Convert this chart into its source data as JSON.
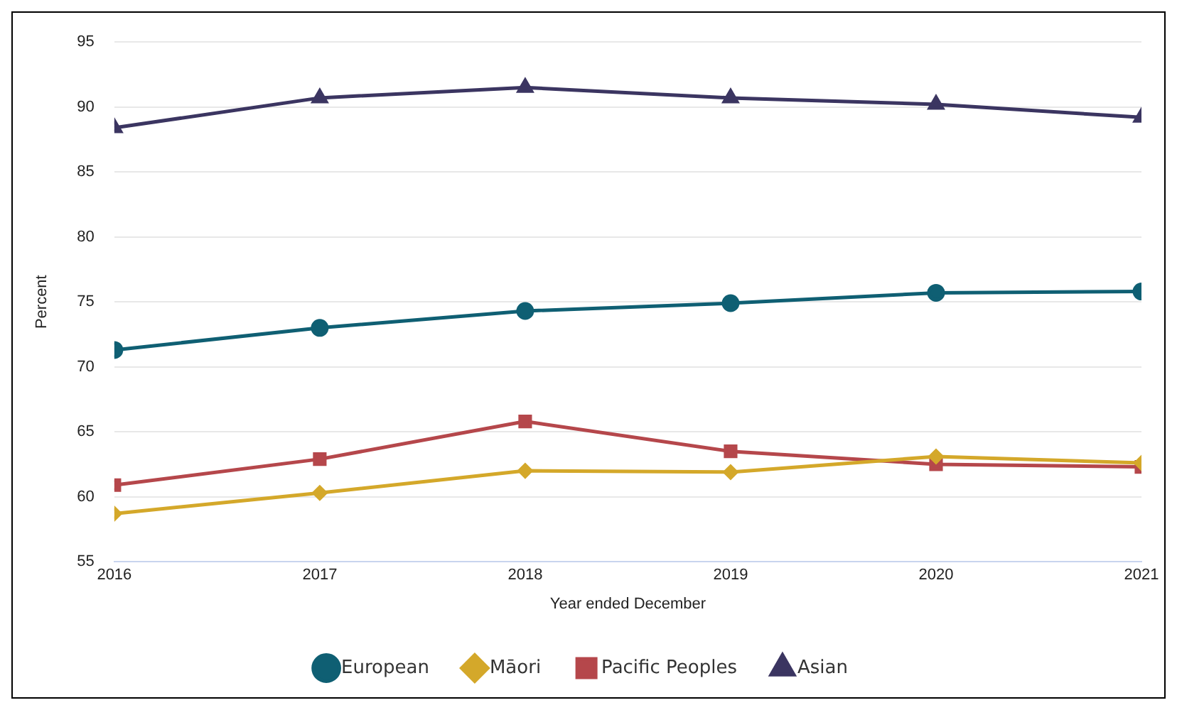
{
  "chart_data": {
    "type": "line",
    "xlabel": "Year ended December",
    "ylabel": "Percent",
    "x": [
      2016,
      2017,
      2018,
      2019,
      2020,
      2021
    ],
    "xlim": [
      2016,
      2021
    ],
    "xticks": [
      2016,
      2017,
      2018,
      2019,
      2020,
      2021
    ],
    "ylim": [
      55,
      95
    ],
    "yticks": [
      55,
      60,
      65,
      70,
      75,
      80,
      85,
      90,
      95
    ],
    "grid": "y",
    "legend": "bottom",
    "series": [
      {
        "name": "European",
        "color": "#0f5f73",
        "marker": "circle",
        "values": [
          71.3,
          73.0,
          74.3,
          74.9,
          75.7,
          75.8
        ]
      },
      {
        "name": "Māori",
        "color": "#d4a82a",
        "marker": "diamond",
        "values": [
          58.7,
          60.3,
          62.0,
          61.9,
          63.1,
          62.6
        ]
      },
      {
        "name": "Pacific Peoples",
        "color": "#b5474b",
        "marker": "square",
        "values": [
          60.9,
          62.9,
          65.8,
          63.5,
          62.5,
          62.3
        ]
      },
      {
        "name": "Asian",
        "color": "#3b3561",
        "marker": "triangle",
        "values": [
          88.4,
          90.7,
          91.5,
          90.7,
          90.2,
          89.2
        ]
      }
    ]
  }
}
